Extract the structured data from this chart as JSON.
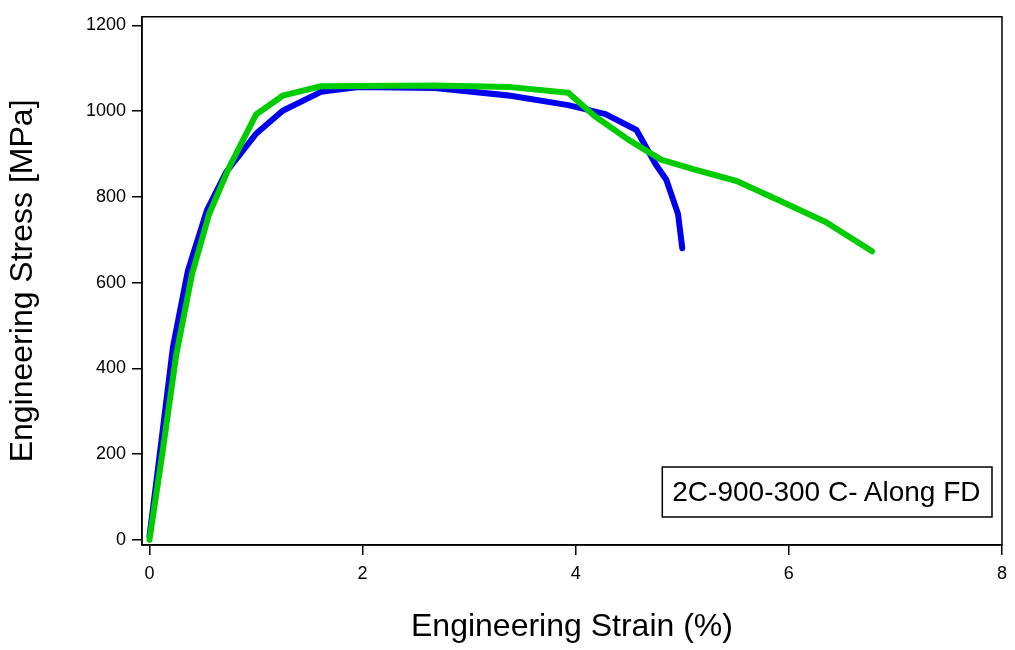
{
  "chart_data": {
    "type": "line",
    "xlabel": "Engineering Strain (%)",
    "ylabel": "Engineering Stress [MPa]",
    "xlim": [
      -0.07,
      8.0
    ],
    "xticks": [
      0,
      2,
      4,
      6,
      8
    ],
    "ylim": [
      -12,
      1220
    ],
    "yticks": [
      0,
      200,
      400,
      600,
      800,
      1000,
      1200
    ],
    "grid": false,
    "legend": false,
    "marker": "none",
    "line_style": "solid",
    "annotations": [
      "2C-900-300 C- Along FD"
    ],
    "series": [
      {
        "color": "#00cc00",
        "x": [
          0,
          0.12,
          0.25,
          0.4,
          0.56,
          0.75,
          1.0,
          1.25,
          1.61,
          2.68,
          3.39,
          3.93,
          4.18,
          4.49,
          4.8,
          5.11,
          5.51,
          5.88,
          6.35,
          6.78
        ],
        "values": [
          0,
          200,
          430,
          620,
          760,
          870,
          992,
          1036,
          1058,
          1060,
          1056,
          1043,
          988,
          934,
          887,
          864,
          837,
          795,
          741,
          673
        ]
      },
      {
        "color": "#0000ee",
        "x": [
          0,
          0.11,
          0.22,
          0.36,
          0.54,
          0.72,
          1.0,
          1.25,
          1.61,
          1.96,
          2.68,
          3.39,
          3.93,
          4.28,
          4.57,
          4.75,
          4.85,
          4.96,
          5.0
        ],
        "values": [
          8,
          226,
          449,
          627,
          769,
          858,
          947,
          1001,
          1045,
          1056,
          1054,
          1036,
          1014,
          993,
          956,
          876,
          840,
          760,
          680
        ]
      }
    ]
  }
}
